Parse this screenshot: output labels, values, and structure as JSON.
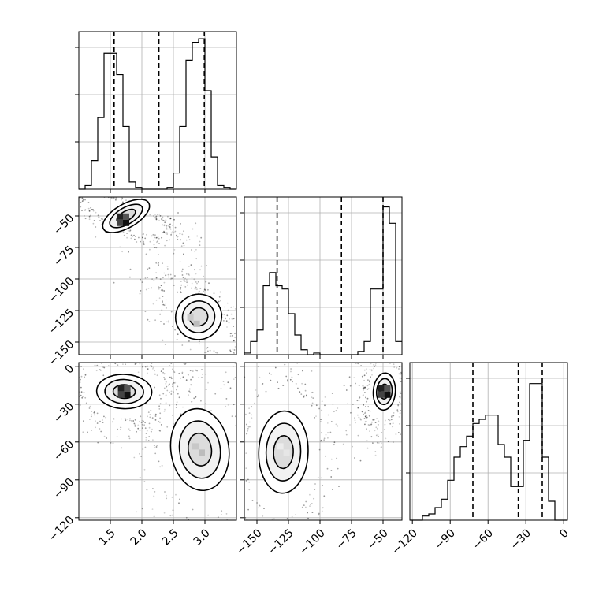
{
  "chart_data": {
    "type": "corner",
    "parameters": [
      {
        "range": [
          1.0,
          3.5
        ],
        "ticks": [
          1.5,
          2.0,
          2.5,
          3.0
        ],
        "tick_labels": [
          "1.5",
          "2.0",
          "2.5",
          "3.0"
        ]
      },
      {
        "range": [
          -160,
          -35
        ],
        "ticks": [
          -150,
          -125,
          -100,
          -75,
          -50
        ],
        "tick_labels": [
          "−150",
          "−125",
          "−100",
          "−75",
          "−50"
        ]
      },
      {
        "range": [
          -122,
          3
        ],
        "ticks": [
          -120,
          -90,
          -60,
          -30,
          0
        ],
        "tick_labels": [
          "−120",
          "−90",
          "−60",
          "−30",
          "0"
        ]
      }
    ],
    "diagonal": [
      {
        "param": 0,
        "bin_edges": [
          1.0,
          1.1,
          1.2,
          1.3,
          1.4,
          1.5,
          1.6,
          1.7,
          1.8,
          1.9,
          2.0,
          2.1,
          2.2,
          2.3,
          2.4,
          2.5,
          2.6,
          2.7,
          2.8,
          2.9,
          3.0,
          3.1,
          3.2,
          3.3,
          3.4,
          3.5
        ],
        "counts": [
          0,
          2,
          16,
          40,
          76,
          76,
          64,
          35,
          4,
          1,
          0,
          0,
          0,
          0,
          1,
          9,
          35,
          72,
          82,
          84,
          55,
          18,
          2,
          1,
          0
        ],
        "quantiles": [
          1.56,
          2.27,
          2.99
        ],
        "ymax": 88
      },
      {
        "param": 1,
        "bin_edges": [
          -160,
          -155,
          -150,
          -145,
          -140,
          -135,
          -130,
          -125,
          -120,
          -115,
          -110,
          -105,
          -100,
          -95,
          -90,
          -85,
          -80,
          -75,
          -70,
          -65,
          -60,
          -55,
          -50,
          -45,
          -40,
          -35
        ],
        "counts": [
          1,
          8,
          15,
          42,
          50,
          42,
          40,
          25,
          12,
          3,
          0,
          1,
          0,
          0,
          0,
          0,
          0,
          0,
          2,
          8,
          40,
          40,
          90,
          80,
          8
        ],
        "quantiles": [
          -134,
          -83,
          -50
        ],
        "ymax": 96
      },
      {
        "param": 2,
        "bin_edges": [
          -122,
          -117,
          -112,
          -107,
          -102,
          -97,
          -92,
          -87,
          -82,
          -77,
          -72,
          -67,
          -62,
          -57,
          -52,
          -47,
          -42,
          -37,
          -32,
          -27,
          -22,
          -17,
          -12,
          -7,
          -2,
          3
        ],
        "counts": [
          0,
          0,
          2,
          3,
          6,
          10,
          19,
          30,
          35,
          40,
          46,
          48,
          50,
          50,
          36,
          30,
          16,
          16,
          38,
          65,
          65,
          30,
          9,
          0,
          0
        ],
        "quantiles": [
          -72,
          -36,
          -17
        ],
        "ymax": 75
      }
    ],
    "pairs": [
      {
        "x_param": 0,
        "y_param": 1,
        "modes": [
          {
            "center": [
              1.75,
              -50
            ],
            "sx": 0.18,
            "sy": 4.5,
            "rho": -0.75,
            "n": 600
          },
          {
            "center": [
              2.9,
              -130
            ],
            "sx": 0.16,
            "sy": 8.5,
            "rho": -0.75,
            "n": 600
          },
          {
            "center": [
              2.7,
              -102
            ],
            "sx": 0.1,
            "sy": 4.0,
            "rho": 0.0,
            "n": 30
          }
        ],
        "contour_levels_sigma": [
          0.8,
          1.4,
          2.0
        ],
        "peak_cells": [
          [
            1.7,
            -53,
            2.6
          ],
          [
            2.82,
            -133,
            1.0
          ]
        ]
      },
      {
        "x_param": 0,
        "y_param": 2,
        "modes": [
          {
            "center": [
              1.72,
              -20
            ],
            "sx": 0.19,
            "sy": 6.5,
            "rho": 0.05,
            "n": 600
          },
          {
            "center": [
              2.92,
              -66
            ],
            "sx": 0.2,
            "sy": 15.5,
            "rho": -0.2,
            "n": 600
          }
        ],
        "contour_levels_sigma": [
          0.8,
          1.4,
          2.0
        ],
        "peak_cells": [
          [
            1.72,
            -20,
            3.0
          ],
          [
            2.9,
            -66,
            1.0
          ]
        ]
      },
      {
        "x_param": 1,
        "y_param": 2,
        "modes": [
          {
            "center": [
              -49,
              -20
            ],
            "sx": 3.8,
            "sy": 7.0,
            "rho": 0.1,
            "n": 600
          },
          {
            "center": [
              -129,
              -68
            ],
            "sx": 8.5,
            "sy": 15.5,
            "rho": 0.05,
            "n": 600
          }
        ],
        "contour_levels_sigma": [
          0.8,
          1.4,
          2.0
        ],
        "peak_cells": [
          [
            -49,
            -20,
            3.0
          ],
          [
            -129,
            -66,
            0.6
          ]
        ]
      }
    ]
  }
}
